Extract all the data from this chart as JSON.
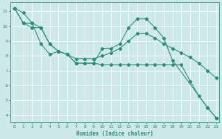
{
  "xlabel": "Humidex (Indice chaleur)",
  "bg_color": "#cce8e8",
  "grid_color": "#ffffff",
  "line_color": "#2e8b7a",
  "xlim": [
    -0.5,
    23.3
  ],
  "ylim": [
    3.5,
    11.6
  ],
  "xticks": [
    0,
    1,
    2,
    3,
    4,
    5,
    6,
    7,
    8,
    9,
    10,
    11,
    12,
    13,
    14,
    15,
    16,
    17,
    18,
    19,
    20,
    21,
    22,
    23
  ],
  "yticks": [
    4,
    5,
    6,
    7,
    8,
    9,
    10,
    11
  ],
  "line1_x": [
    0,
    1,
    2,
    3,
    4,
    5,
    6,
    7,
    8,
    9,
    10,
    11,
    12,
    13,
    14,
    15,
    16,
    17,
    18,
    19,
    20,
    21,
    22,
    23
  ],
  "line1_y": [
    11.2,
    10.9,
    10.2,
    8.8,
    8.1,
    8.3,
    8.1,
    7.5,
    7.5,
    7.5,
    7.4,
    7.4,
    7.4,
    7.4,
    7.4,
    7.4,
    7.4,
    7.4,
    7.4,
    7.4,
    6.3,
    5.3,
    4.5,
    3.8
  ],
  "line2_x": [
    0,
    1,
    2,
    3,
    4,
    5,
    6,
    7,
    8,
    9,
    10,
    11,
    12,
    13,
    14,
    15,
    16,
    17,
    18,
    22,
    23
  ],
  "line2_y": [
    11.2,
    10.2,
    9.9,
    9.9,
    8.8,
    8.3,
    8.1,
    7.5,
    7.5,
    7.5,
    8.5,
    8.5,
    8.8,
    9.9,
    10.5,
    10.5,
    9.9,
    9.2,
    7.7,
    4.5,
    3.8
  ],
  "line3_x": [
    0,
    1,
    2,
    3,
    4,
    5,
    6,
    7,
    8,
    9,
    10,
    11,
    12,
    13,
    14,
    15,
    16,
    17,
    18,
    19,
    20,
    21,
    22,
    23
  ],
  "line3_y": [
    11.2,
    10.2,
    10.2,
    9.9,
    8.8,
    8.3,
    8.1,
    7.8,
    7.8,
    7.8,
    8.0,
    8.2,
    8.5,
    9.0,
    9.5,
    9.5,
    9.2,
    8.8,
    8.5,
    8.2,
    7.9,
    7.5,
    7.0,
    6.5
  ]
}
